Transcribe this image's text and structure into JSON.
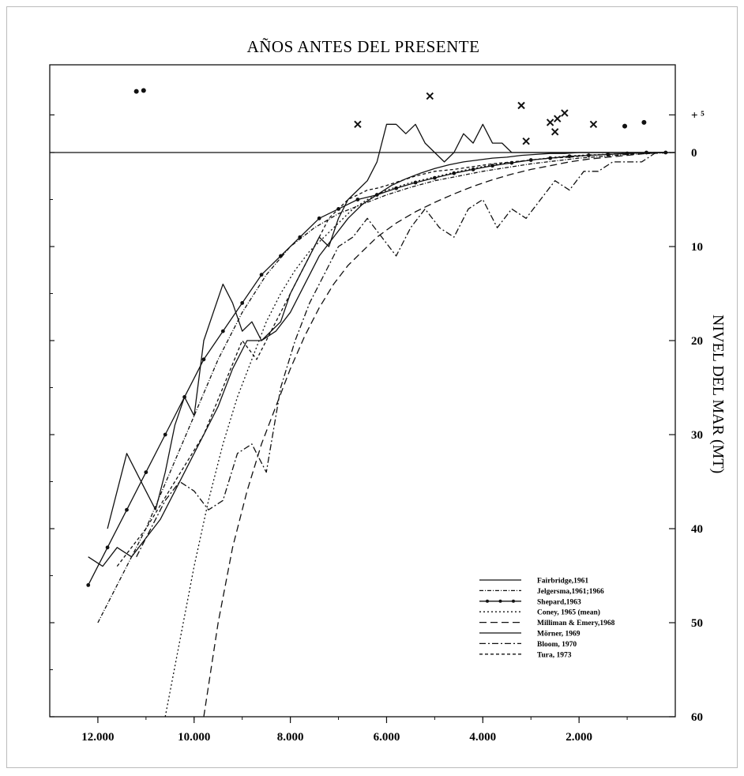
{
  "chart_data": {
    "type": "line",
    "title": "AÑOS ANTES DEL PRESENTE",
    "xlabel": "",
    "ylabel": "NIVEL DEL MAR (MT)",
    "xlim": [
      13000,
      0
    ],
    "ylim": [
      -60,
      8
    ],
    "x_ticks": [
      {
        "value": 12000,
        "label": "12.000"
      },
      {
        "value": 10000,
        "label": "10.000"
      },
      {
        "value": 8000,
        "label": "8.000"
      },
      {
        "value": 6000,
        "label": "6.000"
      },
      {
        "value": 4000,
        "label": "4.000"
      },
      {
        "value": 2000,
        "label": "2.000"
      }
    ],
    "y_ticks": [
      {
        "value": 4,
        "label": "+ ⁵"
      },
      {
        "value": 0,
        "label": "0"
      },
      {
        "value": -10,
        "label": "10"
      },
      {
        "value": -20,
        "label": "20"
      },
      {
        "value": -30,
        "label": "30"
      },
      {
        "value": -40,
        "label": "40"
      },
      {
        "value": -50,
        "label": "50"
      },
      {
        "value": -60,
        "label": "60"
      }
    ],
    "grid": false,
    "legend_position": "bottom-right",
    "series": [
      {
        "name": "Fairbridge,1961",
        "color": "#111111",
        "dash": "",
        "marker": "none",
        "x": [
          11800,
          11400,
          11000,
          10800,
          10600,
          10400,
          10200,
          10000,
          9800,
          9600,
          9400,
          9200,
          9000,
          8800,
          8600,
          8400,
          8200,
          8000,
          7800,
          7600,
          7400,
          7200,
          7000,
          6800,
          6600,
          6400,
          6200,
          6000,
          5800,
          5600,
          5400,
          5200,
          5000,
          4800,
          4600,
          4400,
          4200,
          4000,
          3800,
          3600,
          3400,
          3200,
          3000,
          2800,
          2600,
          2400,
          2200,
          2000,
          1800,
          1600,
          1400,
          1200,
          1000,
          800,
          600,
          400,
          200
        ],
        "y": [
          -40,
          -32,
          -36,
          -38,
          -34,
          -29,
          -26,
          -28,
          -20,
          -17,
          -14,
          -16,
          -19,
          -18,
          -20,
          -19,
          -18,
          -15,
          -13,
          -11,
          -9,
          -10,
          -7,
          -5,
          -4,
          -3,
          -1,
          3,
          3,
          2,
          3,
          1,
          0,
          -1,
          0,
          2,
          1,
          3,
          1,
          1,
          0,
          0,
          0,
          0,
          0,
          0,
          0,
          0,
          0,
          0,
          0,
          0,
          0,
          0,
          0,
          0,
          0
        ]
      },
      {
        "name": "Jelgersma,1961;1966",
        "color": "#111111",
        "dash": "5,2,1,2",
        "marker": "none",
        "x": [
          12000,
          11500,
          11000,
          10500,
          10000,
          9500,
          9000,
          8500,
          8000,
          7500,
          7000,
          6500,
          6000,
          5500,
          5000,
          4500,
          4000,
          3500,
          3000,
          2500,
          2000,
          1500,
          1000,
          500,
          0
        ],
        "y": [
          -50,
          -45,
          -40,
          -34,
          -28,
          -22,
          -17,
          -13,
          -10,
          -8,
          -6.5,
          -5.5,
          -4.5,
          -3.7,
          -3,
          -2.5,
          -2,
          -1.6,
          -1.2,
          -0.9,
          -0.6,
          -0.4,
          -0.2,
          -0.1,
          0
        ]
      },
      {
        "name": "Shepard,1963",
        "color": "#111111",
        "dash": "",
        "marker": "dot",
        "x": [
          12200,
          11800,
          11400,
          11000,
          10600,
          10200,
          9800,
          9400,
          9000,
          8600,
          8200,
          7800,
          7400,
          7000,
          6600,
          6200,
          5800,
          5400,
          5000,
          4600,
          4200,
          3800,
          3400,
          3000,
          2600,
          2200,
          1800,
          1400,
          1000,
          600,
          200
        ],
        "y": [
          -46,
          -42,
          -38,
          -34,
          -30,
          -26,
          -22,
          -19,
          -16,
          -13,
          -11,
          -9,
          -7,
          -6,
          -5,
          -4.5,
          -3.8,
          -3.2,
          -2.7,
          -2.2,
          -1.8,
          -1.4,
          -1.1,
          -0.8,
          -0.6,
          -0.4,
          -0.3,
          -0.2,
          -0.1,
          0,
          0
        ]
      },
      {
        "name": "Coney, 1965 (mean)",
        "color": "#111111",
        "dash": "2,3",
        "marker": "none",
        "x": [
          10600,
          10300,
          10000,
          9700,
          9400,
          9100,
          8800,
          8500,
          8200,
          7900,
          7600,
          7300,
          7000,
          6700,
          6400,
          6000,
          5500,
          5000,
          4500,
          4000,
          3500,
          3000,
          2500,
          2000,
          1500,
          1000,
          500,
          0
        ],
        "y": [
          -60,
          -52,
          -44,
          -37,
          -31,
          -26,
          -22,
          -18,
          -15,
          -12.5,
          -10.5,
          -9,
          -7.5,
          -6,
          -5,
          -4,
          -3.2,
          -2.6,
          -2,
          -1.5,
          -1.1,
          -0.8,
          -0.5,
          -0.3,
          -0.2,
          -0.1,
          0,
          0
        ]
      },
      {
        "name": "Milliman & Emery,1968",
        "color": "#111111",
        "dash": "9,5",
        "marker": "none",
        "x": [
          9800,
          9500,
          9200,
          8900,
          8600,
          8300,
          8000,
          7700,
          7400,
          7100,
          6800,
          6500,
          6200,
          5800,
          5400,
          5000,
          4600,
          4200,
          3800,
          3400,
          3000,
          2600,
          2200,
          1800,
          1400,
          1000,
          600,
          200
        ],
        "y": [
          -60,
          -50,
          -42,
          -36,
          -31,
          -27,
          -23,
          -19.5,
          -16.5,
          -14,
          -12,
          -10.5,
          -9,
          -7.5,
          -6.3,
          -5.3,
          -4.4,
          -3.6,
          -2.9,
          -2.3,
          -1.8,
          -1.4,
          -1,
          -0.7,
          -0.5,
          -0.3,
          -0.1,
          0
        ]
      },
      {
        "name": "Mörner, 1969",
        "color": "#111111",
        "dash": "",
        "marker": "none",
        "x": [
          12200,
          11900,
          11600,
          11300,
          11000,
          10700,
          10400,
          10100,
          9800,
          9500,
          9200,
          8900,
          8600,
          8300,
          8000,
          7700,
          7400,
          7100,
          6800,
          6500,
          6200,
          5900,
          5600,
          5300,
          5000,
          4700,
          4400,
          4100,
          3800,
          3500,
          3200,
          2900,
          2600,
          2300,
          2000,
          1700,
          1400,
          1100,
          800,
          500,
          200
        ],
        "y": [
          -43,
          -44,
          -42,
          -43,
          -41,
          -39,
          -36,
          -33,
          -30,
          -27,
          -23,
          -20,
          -20,
          -19,
          -17,
          -14,
          -11,
          -9,
          -7,
          -5.5,
          -4.5,
          -3.5,
          -2.8,
          -2.2,
          -1.7,
          -1.3,
          -1,
          -0.8,
          -0.6,
          -0.5,
          -0.3,
          -0.2,
          -0.1,
          -0.1,
          0,
          0,
          0,
          0,
          0,
          0,
          0
        ]
      },
      {
        "name": "Bloom, 1970",
        "color": "#111111",
        "dash": "8,3,2,3",
        "marker": "none",
        "x": [
          11200,
          10900,
          10600,
          10300,
          10000,
          9700,
          9400,
          9100,
          8800,
          8500,
          8200,
          7900,
          7600,
          7300,
          7000,
          6700,
          6400,
          6100,
          5800,
          5500,
          5200,
          4900,
          4600,
          4300,
          4000,
          3700,
          3400,
          3100,
          2800,
          2500,
          2200,
          1900,
          1600,
          1300,
          1000,
          700,
          400,
          100
        ],
        "y": [
          -43,
          -40,
          -37,
          -35,
          -36,
          -38,
          -37,
          -32,
          -31,
          -34,
          -25,
          -20,
          -16,
          -13,
          -10,
          -9,
          -7,
          -9,
          -11,
          -8,
          -6,
          -8,
          -9,
          -6,
          -5,
          -8,
          -6,
          -7,
          -5,
          -3,
          -4,
          -2,
          -2,
          -1,
          -1,
          -1,
          0,
          0
        ]
      },
      {
        "name": "Tura, 1973",
        "color": "#111111",
        "dash": "4,3",
        "marker": "none",
        "x": [
          11600,
          11000,
          10400,
          9800,
          9400,
          9000,
          8700,
          8400,
          8100,
          7800,
          7500,
          7200,
          7000,
          6800,
          6600,
          6400,
          6200,
          6000,
          5700,
          5400,
          5000,
          4600,
          4200,
          3800,
          3400,
          3000,
          2600,
          2200,
          1800,
          1400,
          1000,
          600,
          200
        ],
        "y": [
          -44,
          -40,
          -35,
          -30,
          -25,
          -20,
          -22,
          -19,
          -16,
          -13,
          -10,
          -7,
          -6,
          -5,
          -4.5,
          -4,
          -3.8,
          -3.5,
          -3,
          -2.5,
          -2,
          -1.8,
          -1.5,
          -1.2,
          -1,
          -0.8,
          -0.6,
          -0.5,
          -0.3,
          -0.2,
          -0.1,
          0,
          0
        ]
      }
    ],
    "scatter_points": [
      {
        "marker": "dot",
        "x": 11200,
        "y": 6.5
      },
      {
        "marker": "dot",
        "x": 11050,
        "y": 6.6
      },
      {
        "marker": "cross",
        "x": 6600,
        "y": 3.0
      },
      {
        "marker": "cross",
        "x": 5100,
        "y": 6.0
      },
      {
        "marker": "cross",
        "x": 3200,
        "y": 5.0
      },
      {
        "marker": "cross",
        "x": 3100,
        "y": 1.2
      },
      {
        "marker": "cross",
        "x": 2600,
        "y": 3.2
      },
      {
        "marker": "cross",
        "x": 2500,
        "y": 2.2
      },
      {
        "marker": "cross",
        "x": 2450,
        "y": 3.6
      },
      {
        "marker": "cross",
        "x": 2300,
        "y": 4.2
      },
      {
        "marker": "cross",
        "x": 1700,
        "y": 3.0
      },
      {
        "marker": "dot",
        "x": 1050,
        "y": 2.8
      },
      {
        "marker": "dot",
        "x": 650,
        "y": 3.2
      }
    ]
  }
}
